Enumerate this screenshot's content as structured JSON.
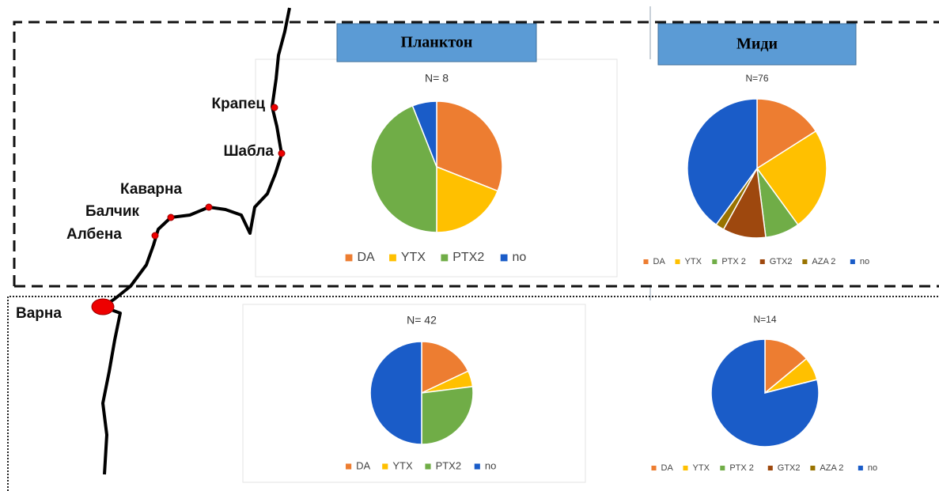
{
  "headers": [
    "Планктон",
    "Миди"
  ],
  "map": {
    "places": [
      "Крапец",
      "Шабла",
      "Каварна",
      "Балчик",
      "Албена",
      "Варна"
    ]
  },
  "chart_data": [
    {
      "type": "pie",
      "title": "N= 8",
      "categories": [
        "DA",
        "YTX",
        "PTX2",
        "no"
      ],
      "values": [
        31,
        19,
        44,
        6
      ],
      "colors": [
        "#ed7d31",
        "#ffc000",
        "#70ad47",
        "#1a5cc8"
      ]
    },
    {
      "type": "pie",
      "title": "N=76",
      "categories": [
        "DA",
        "YTX",
        "PTX 2",
        "GTX2",
        "AZA 2",
        "no"
      ],
      "values": [
        16,
        24,
        8,
        10,
        2,
        40
      ],
      "colors": [
        "#ed7d31",
        "#ffc000",
        "#70ad47",
        "#9e480e",
        "#997300",
        "#1a5cc8"
      ]
    },
    {
      "type": "pie",
      "title": "N= 42",
      "categories": [
        "DA",
        "YTX",
        "PTX2",
        "no"
      ],
      "values": [
        18,
        5,
        27,
        50
      ],
      "colors": [
        "#ed7d31",
        "#ffc000",
        "#70ad47",
        "#1a5cc8"
      ]
    },
    {
      "type": "pie",
      "title": "N=14",
      "categories": [
        "DA",
        "YTX",
        "PTX 2",
        "GTX2",
        "AZA 2",
        "no"
      ],
      "values": [
        14,
        7,
        0,
        0,
        0,
        79
      ],
      "colors": [
        "#ed7d31",
        "#ffc000",
        "#70ad47",
        "#9e480e",
        "#997300",
        "#1a5cc8"
      ]
    }
  ]
}
